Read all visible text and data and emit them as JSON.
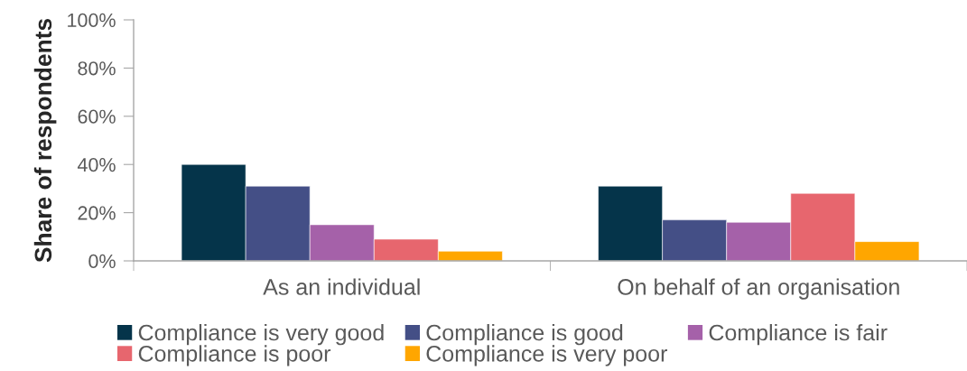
{
  "chart_data": {
    "type": "bar",
    "ylabel": "Share of respondents",
    "categories": [
      "As an individual",
      "On behalf of an organisation"
    ],
    "ylim": [
      0,
      100
    ],
    "yticks": [
      {
        "value": 0,
        "label": "0%"
      },
      {
        "value": 20,
        "label": "20%"
      },
      {
        "value": 40,
        "label": "40%"
      },
      {
        "value": 60,
        "label": "60%"
      },
      {
        "value": 80,
        "label": "80%"
      },
      {
        "value": 100,
        "label": "100%"
      }
    ],
    "series": [
      {
        "name": "Compliance is very good",
        "color": "#05344a",
        "values": [
          40,
          31
        ]
      },
      {
        "name": "Compliance is good",
        "color": "#444f86",
        "values": [
          31,
          17
        ]
      },
      {
        "name": "Compliance is fair",
        "color": "#a561a9",
        "values": [
          15,
          16
        ]
      },
      {
        "name": "Compliance is poor",
        "color": "#e7666e",
        "values": [
          9,
          28
        ]
      },
      {
        "name": "Compliance is very poor",
        "color": "#ffa600",
        "values": [
          4,
          8
        ]
      }
    ],
    "legend": "bottom"
  }
}
